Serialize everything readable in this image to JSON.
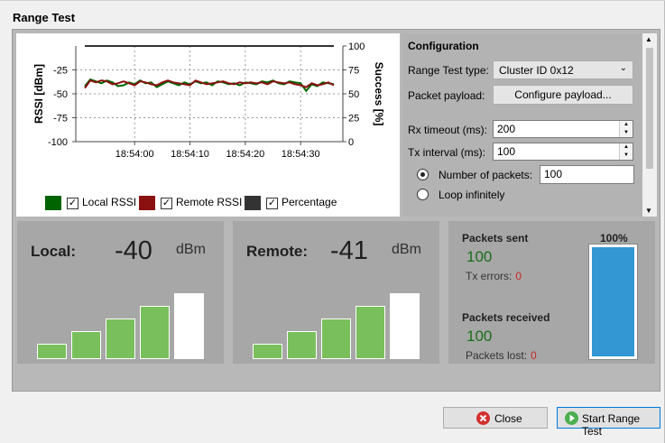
{
  "window": {
    "title": "Range Test"
  },
  "chart_data": {
    "type": "line",
    "x": [
      "18:53:51",
      "18:53:52",
      "18:53:53",
      "18:53:54",
      "18:53:55",
      "18:53:56",
      "18:53:57",
      "18:53:58",
      "18:53:59",
      "18:54:00",
      "18:54:01",
      "18:54:02",
      "18:54:03",
      "18:54:04",
      "18:54:05",
      "18:54:06",
      "18:54:07",
      "18:54:08",
      "18:54:09",
      "18:54:10",
      "18:54:11",
      "18:54:12",
      "18:54:13",
      "18:54:14",
      "18:54:15",
      "18:54:16",
      "18:54:17",
      "18:54:18",
      "18:54:19",
      "18:54:20",
      "18:54:21",
      "18:54:22",
      "18:54:23",
      "18:54:24",
      "18:54:25",
      "18:54:26",
      "18:54:27",
      "18:54:28",
      "18:54:29",
      "18:54:30",
      "18:54:31",
      "18:54:32",
      "18:54:33",
      "18:54:34",
      "18:54:35",
      "18:54:36"
    ],
    "series": [
      {
        "name": "Local RSSI",
        "axis": "left",
        "color": "#006400",
        "values": [
          -42,
          -35,
          -37,
          -39,
          -36,
          -38,
          -42,
          -41,
          -38,
          -40,
          -36,
          -39,
          -38,
          -43,
          -40,
          -37,
          -39,
          -41,
          -38,
          -40,
          -37,
          -39,
          -38,
          -41,
          -37,
          -38,
          -40,
          -39,
          -41,
          -38,
          -39,
          -40,
          -37,
          -38,
          -36,
          -39,
          -40,
          -37,
          -38,
          -39,
          -47,
          -40,
          -42,
          -38,
          -39,
          -40
        ]
      },
      {
        "name": "Remote RSSI",
        "axis": "left",
        "color": "#8b1010",
        "values": [
          -44,
          -36,
          -38,
          -36,
          -37,
          -40,
          -39,
          -37,
          -39,
          -41,
          -37,
          -38,
          -40,
          -41,
          -38,
          -36,
          -38,
          -39,
          -40,
          -41,
          -36,
          -38,
          -40,
          -39,
          -38,
          -37,
          -39,
          -40,
          -38,
          -39,
          -38,
          -39,
          -38,
          -40,
          -37,
          -38,
          -39,
          -38,
          -40,
          -41,
          -43,
          -39,
          -41,
          -40,
          -38,
          -41
        ]
      },
      {
        "name": "Percentage",
        "axis": "right",
        "color": "#333333",
        "values": [
          100,
          100,
          100,
          100,
          100,
          100,
          100,
          100,
          100,
          100,
          100,
          100,
          100,
          100,
          100,
          100,
          100,
          100,
          100,
          100,
          100,
          100,
          100,
          100,
          100,
          100,
          100,
          100,
          100,
          100,
          100,
          100,
          100,
          100,
          100,
          100,
          100,
          100,
          100,
          100,
          100,
          100,
          100,
          100,
          100,
          100
        ]
      }
    ],
    "xticks": [
      "18:54:00",
      "18:54:10",
      "18:54:20",
      "18:54:30"
    ],
    "yleft": {
      "label": "RSSI [dBm]",
      "ticks": [
        "-25",
        "-50",
        "-75",
        "-100"
      ],
      "range": [
        -100,
        0
      ]
    },
    "yright": {
      "label": "Success [%]",
      "ticks": [
        "100",
        "75",
        "50",
        "25",
        "0"
      ],
      "range": [
        0,
        100
      ]
    },
    "legend": [
      {
        "label": "Local RSSI",
        "color": "#006400"
      },
      {
        "label": "Remote RSSI",
        "color": "#8b1010"
      },
      {
        "label": "Percentage",
        "color": "#333333"
      }
    ],
    "grid": true
  },
  "config": {
    "heading": "Configuration",
    "type_label": "Range Test type:",
    "type_value": "Cluster ID 0x12",
    "payload_label": "Packet payload:",
    "payload_button": "Configure payload...",
    "rx_label": "Rx timeout (ms):",
    "rx_value": "200",
    "tx_label": "Tx interval (ms):",
    "tx_value": "100",
    "num_packets_label": "Number of packets:",
    "num_packets_value": "100",
    "loop_label": "Loop infinitely"
  },
  "local": {
    "label": "Local:",
    "value": "-40",
    "unit": "dBm",
    "signal_bars": 4,
    "total_bars": 5
  },
  "remote": {
    "label": "Remote:",
    "value": "-41",
    "unit": "dBm",
    "signal_bars": 4,
    "total_bars": 5
  },
  "stats": {
    "sent_label": "Packets sent",
    "sent_value": "100",
    "tx_err_label": "Tx errors:",
    "tx_err_value": "0",
    "recv_label": "Packets received",
    "recv_value": "100",
    "lost_label": "Packets lost:",
    "lost_value": "0",
    "progress_label": "100%",
    "progress": 1.0
  },
  "footer": {
    "close": "Close",
    "start": "Start Range Test"
  }
}
